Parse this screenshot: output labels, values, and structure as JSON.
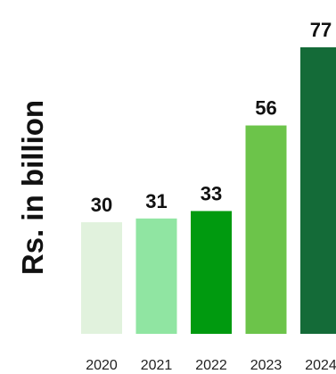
{
  "chart_data": {
    "type": "bar",
    "title": "",
    "xlabel": "",
    "ylabel": "Rs. in billion",
    "categories": [
      "2020",
      "2021",
      "2022",
      "2023",
      "2024"
    ],
    "values": [
      30,
      31,
      33,
      56,
      77
    ],
    "data_labels": [
      "30",
      "31",
      "33",
      "56",
      "77"
    ],
    "bar_colors": [
      "#e1f2dd",
      "#90e5a2",
      "#009a0f",
      "#6cc44a",
      "#146b38"
    ],
    "ylim": [
      0,
      77
    ],
    "grid": false,
    "legend": "none"
  }
}
